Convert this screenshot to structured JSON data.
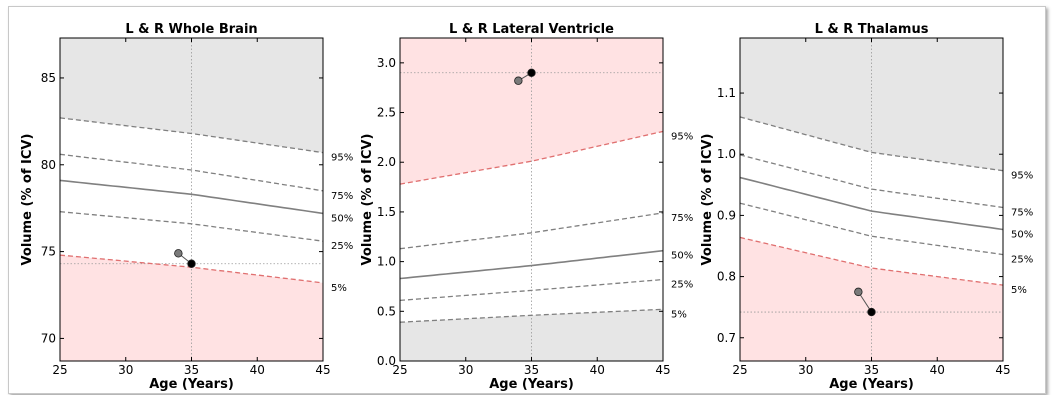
{
  "chart_data": [
    {
      "type": "line",
      "title": "L & R Whole Brain",
      "xlabel": "Age (Years)",
      "ylabel": "Volume (% of ICV)",
      "xlim": [
        25,
        45
      ],
      "ylim": [
        68.7,
        87.3
      ],
      "xticks": [
        25,
        30,
        35,
        40,
        45
      ],
      "yticks": [
        70,
        75,
        80,
        85
      ],
      "lower_shade_top": "p5",
      "upper_shade_bottom": "p95",
      "percentiles": {
        "p5": [
          [
            25,
            74.8
          ],
          [
            35,
            74.1
          ],
          [
            45,
            73.2
          ]
        ],
        "p25": [
          [
            25,
            77.3
          ],
          [
            35,
            76.6
          ],
          [
            45,
            75.6
          ]
        ],
        "p50": [
          [
            25,
            79.1
          ],
          [
            35,
            78.3
          ],
          [
            45,
            77.2
          ]
        ],
        "p75": [
          [
            25,
            80.6
          ],
          [
            35,
            79.7
          ],
          [
            45,
            78.5
          ]
        ],
        "p95": [
          [
            25,
            82.7
          ],
          [
            35,
            81.8
          ],
          [
            45,
            80.7
          ]
        ]
      },
      "percentile_labels": [
        {
          "key": "p95",
          "text": "95%",
          "y": 80.7
        },
        {
          "key": "p75",
          "text": "75%",
          "y": 78.5
        },
        {
          "key": "p50",
          "text": "50%",
          "y": 77.2
        },
        {
          "key": "p25",
          "text": "25%",
          "y": 75.6
        },
        {
          "key": "p5",
          "text": "5%",
          "y": 73.2
        }
      ],
      "points": [
        {
          "x": 34.0,
          "y": 74.9,
          "color": "#7a7a7a"
        },
        {
          "x": 35.0,
          "y": 74.3,
          "color": "#000000"
        }
      ],
      "reference": {
        "x": 35,
        "y": 74.3
      }
    },
    {
      "type": "line",
      "title": "L & R Lateral Ventricle",
      "xlabel": "Age (Years)",
      "ylabel": "Volume (% of ICV)",
      "xlim": [
        25,
        45
      ],
      "ylim": [
        0,
        3.25
      ],
      "xticks": [
        25,
        30,
        35,
        40,
        45
      ],
      "yticks": [
        0.0,
        0.5,
        1.0,
        1.5,
        2.0,
        2.5,
        3.0
      ],
      "ytick_labels": [
        "0.0",
        "0.5",
        "1.0",
        "1.5",
        "2.0",
        "2.5",
        "3.0"
      ],
      "lower_shade_top": "p5",
      "upper_shade_bottom": "p95",
      "percentiles": {
        "p5": [
          [
            25,
            0.39
          ],
          [
            35,
            0.46
          ],
          [
            45,
            0.52
          ]
        ],
        "p25": [
          [
            25,
            0.61
          ],
          [
            35,
            0.71
          ],
          [
            45,
            0.82
          ]
        ],
        "p50": [
          [
            25,
            0.83
          ],
          [
            35,
            0.96
          ],
          [
            45,
            1.11
          ]
        ],
        "p75": [
          [
            25,
            1.13
          ],
          [
            35,
            1.29
          ],
          [
            45,
            1.49
          ]
        ],
        "p95": [
          [
            25,
            1.78
          ],
          [
            35,
            2.01
          ],
          [
            45,
            2.31
          ]
        ]
      },
      "percentile_labels": [
        {
          "key": "p95",
          "text": "95%",
          "y": 2.31
        },
        {
          "key": "p75",
          "text": "75%",
          "y": 1.49
        },
        {
          "key": "p50",
          "text": "50%",
          "y": 1.11
        },
        {
          "key": "p25",
          "text": "25%",
          "y": 0.82
        },
        {
          "key": "p5",
          "text": "5%",
          "y": 0.52
        }
      ],
      "points": [
        {
          "x": 34.0,
          "y": 2.82,
          "color": "#7a7a7a"
        },
        {
          "x": 35.0,
          "y": 2.9,
          "color": "#000000"
        }
      ],
      "reference": {
        "x": 35,
        "y": 2.9
      }
    },
    {
      "type": "line",
      "title": "L & R Thalamus",
      "xlabel": "Age (Years)",
      "ylabel": "Volume (% of ICV)",
      "xlim": [
        25,
        45
      ],
      "ylim": [
        0.662,
        1.19
      ],
      "xticks": [
        25,
        30,
        35,
        40,
        45
      ],
      "yticks": [
        0.7,
        0.8,
        0.9,
        1.0,
        1.1
      ],
      "ytick_labels": [
        "0.7",
        "0.8",
        "0.9",
        "1.0",
        "1.1"
      ],
      "lower_shade_top": "p5",
      "upper_shade_bottom": "p95",
      "percentiles": {
        "p5": [
          [
            25,
            0.864
          ],
          [
            35,
            0.814
          ],
          [
            45,
            0.786
          ]
        ],
        "p25": [
          [
            25,
            0.92
          ],
          [
            35,
            0.866
          ],
          [
            45,
            0.836
          ]
        ],
        "p50": [
          [
            25,
            0.962
          ],
          [
            35,
            0.907
          ],
          [
            45,
            0.877
          ]
        ],
        "p75": [
          [
            25,
            0.999
          ],
          [
            35,
            0.943
          ],
          [
            45,
            0.913
          ]
        ],
        "p95": [
          [
            25,
            1.061
          ],
          [
            35,
            1.003
          ],
          [
            45,
            0.973
          ]
        ]
      },
      "percentile_labels": [
        {
          "key": "p95",
          "text": "95%",
          "y": 0.973
        },
        {
          "key": "p75",
          "text": "75%",
          "y": 0.913
        },
        {
          "key": "p50",
          "text": "50%",
          "y": 0.877
        },
        {
          "key": "p25",
          "text": "25%",
          "y": 0.836
        },
        {
          "key": "p5",
          "text": "5%",
          "y": 0.786
        }
      ],
      "points": [
        {
          "x": 34.0,
          "y": 0.775,
          "color": "#7a7a7a"
        },
        {
          "x": 35.0,
          "y": 0.742,
          "color": "#000000"
        }
      ],
      "reference": {
        "x": 35,
        "y": 0.742
      }
    }
  ],
  "colors": {
    "shade_red": "#ffe2e3",
    "shade_gray": "#e6e6e6",
    "median_line": "#808080",
    "percentile_dash": "#808080",
    "boundary_red": "#e07070",
    "reference_line": "#9a9a9a"
  }
}
